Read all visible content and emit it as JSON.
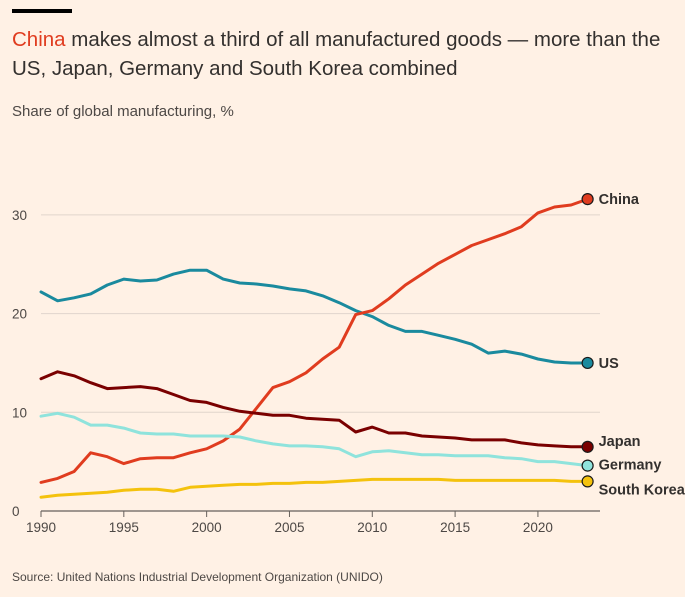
{
  "header": {
    "title_highlight": "China",
    "title_rest": " makes almost a third of all manufactured goods — more than the US, Japan, Germany and South Korea combined",
    "subtitle": "Share of global manufacturing, %"
  },
  "footer": {
    "source": "Source: United Nations Industrial Development Organization (UNIDO)"
  },
  "chart_data": {
    "type": "line",
    "title": "China makes almost a third of all manufactured goods — more than the US, Japan, Germany and South Korea combined",
    "ylabel": "Share of global manufacturing, %",
    "xlabel": "",
    "xlim": [
      1990,
      2023
    ],
    "ylim": [
      0,
      33
    ],
    "xticks": [
      1990,
      1995,
      2000,
      2005,
      2010,
      2015,
      2020
    ],
    "yticks": [
      0,
      10,
      20,
      30
    ],
    "grid": "horizontal",
    "x": [
      1990,
      1991,
      1992,
      1993,
      1994,
      1995,
      1996,
      1997,
      1998,
      1999,
      2000,
      2001,
      2002,
      2003,
      2004,
      2005,
      2006,
      2007,
      2008,
      2009,
      2010,
      2011,
      2012,
      2013,
      2014,
      2015,
      2016,
      2017,
      2018,
      2019,
      2020,
      2021,
      2022,
      2023
    ],
    "series": [
      {
        "name": "US",
        "color": "#1a8a9e",
        "values": [
          22.2,
          21.3,
          21.6,
          22.0,
          22.9,
          23.5,
          23.3,
          23.4,
          24.0,
          24.4,
          24.4,
          23.5,
          23.1,
          23.0,
          22.8,
          22.5,
          22.3,
          21.8,
          21.1,
          20.3,
          19.7,
          18.8,
          18.2,
          18.2,
          17.8,
          17.4,
          16.9,
          16.0,
          16.2,
          15.9,
          15.4,
          15.1,
          15.0,
          15.0
        ]
      },
      {
        "name": "China",
        "color": "#e03c1f",
        "values": [
          2.9,
          3.3,
          4.0,
          5.9,
          5.5,
          4.8,
          5.3,
          5.4,
          5.4,
          5.9,
          6.3,
          7.1,
          8.3,
          10.4,
          12.5,
          13.1,
          14.0,
          15.4,
          16.6,
          19.9,
          20.3,
          21.5,
          22.9,
          24.0,
          25.1,
          26.0,
          26.9,
          27.5,
          28.1,
          28.8,
          30.2,
          30.8,
          31.0,
          31.6
        ]
      },
      {
        "name": "Japan",
        "color": "#7a0000",
        "values": [
          13.4,
          14.1,
          13.7,
          13.0,
          12.4,
          12.5,
          12.6,
          12.4,
          11.8,
          11.2,
          11.0,
          10.5,
          10.1,
          9.9,
          9.7,
          9.7,
          9.4,
          9.3,
          9.2,
          8.0,
          8.5,
          7.9,
          7.9,
          7.6,
          7.5,
          7.4,
          7.2,
          7.2,
          7.2,
          6.9,
          6.7,
          6.6,
          6.5,
          6.5
        ]
      },
      {
        "name": "Germany",
        "color": "#8fe3dc",
        "values": [
          9.6,
          9.9,
          9.5,
          8.7,
          8.7,
          8.4,
          7.9,
          7.8,
          7.8,
          7.6,
          7.6,
          7.6,
          7.5,
          7.1,
          6.8,
          6.6,
          6.6,
          6.5,
          6.3,
          5.5,
          6.0,
          6.1,
          5.9,
          5.7,
          5.7,
          5.6,
          5.6,
          5.6,
          5.4,
          5.3,
          5.0,
          5.0,
          4.8,
          4.6
        ]
      },
      {
        "name": "South Korea",
        "color": "#f4c20d",
        "values": [
          1.4,
          1.6,
          1.7,
          1.8,
          1.9,
          2.1,
          2.2,
          2.2,
          2.0,
          2.4,
          2.5,
          2.6,
          2.7,
          2.7,
          2.8,
          2.8,
          2.9,
          2.9,
          3.0,
          3.1,
          3.2,
          3.2,
          3.2,
          3.2,
          3.2,
          3.1,
          3.1,
          3.1,
          3.1,
          3.1,
          3.1,
          3.1,
          3.0,
          3.0
        ]
      }
    ]
  }
}
